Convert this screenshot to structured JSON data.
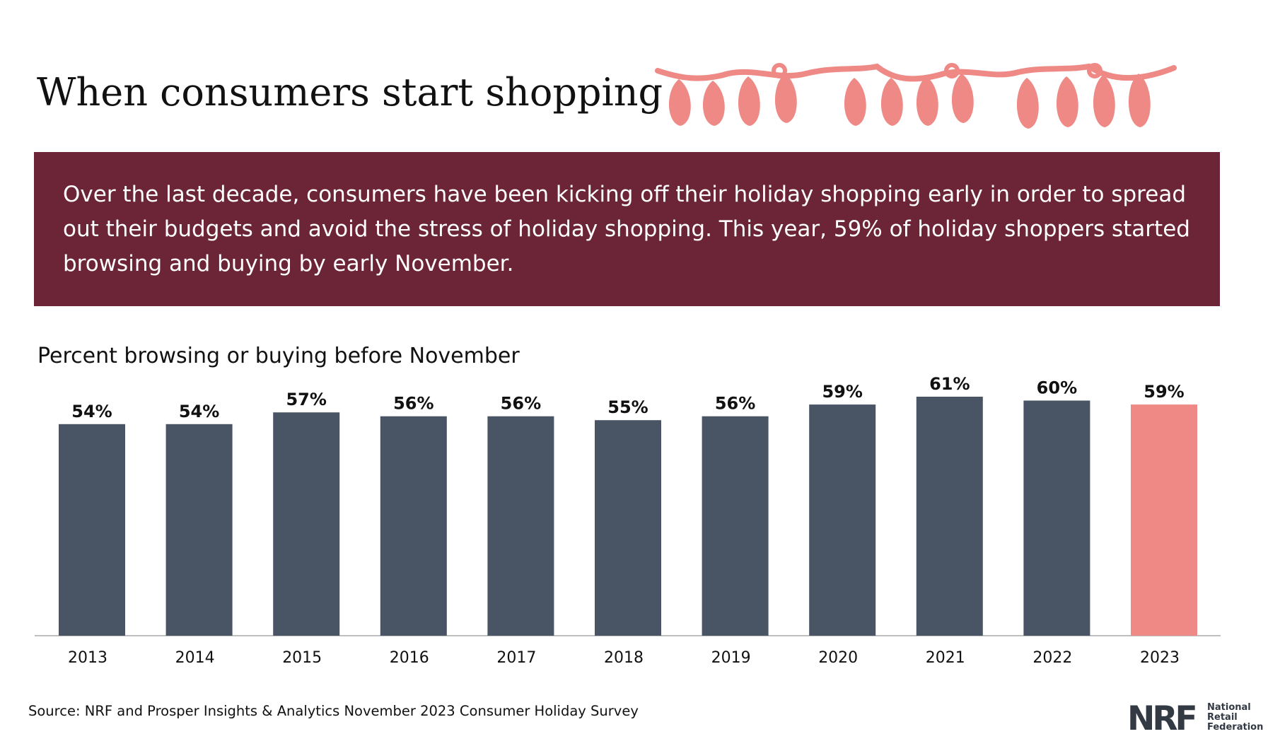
{
  "header": {
    "title": "When consumers start shopping",
    "decoration": "string-lights-illustration"
  },
  "intro": {
    "text": "Over the last decade, consumers have been kicking off their holiday shopping early in order to spread out their budgets and avoid the stress of holiday shopping. This year, 59% of holiday shoppers started browsing and buying by early November."
  },
  "chart_data": {
    "type": "bar",
    "title": "Percent browsing or buying before November",
    "xlabel": "",
    "ylabel": "",
    "categories": [
      "2013",
      "2014",
      "2015",
      "2016",
      "2017",
      "2018",
      "2019",
      "2020",
      "2021",
      "2022",
      "2023"
    ],
    "values": [
      54,
      54,
      57,
      56,
      56,
      55,
      56,
      59,
      61,
      60,
      59
    ],
    "value_labels": [
      "54%",
      "54%",
      "57%",
      "56%",
      "56%",
      "55%",
      "56%",
      "59%",
      "61%",
      "60%",
      "59%"
    ],
    "ylim": [
      0,
      61
    ],
    "grid": false,
    "legend": "none",
    "colors": {
      "default_bar": "#495464",
      "highlight_bar": "#ee8985",
      "baseline": "#bfbfbf",
      "text": "#111111"
    },
    "highlight_index": 10
  },
  "footer": {
    "source": "Source: NRF and Prosper Insights & Analytics November 2023 Consumer Holiday Survey",
    "logo": {
      "mark": "NRF",
      "lines": [
        "National",
        "Retail",
        "Federation"
      ]
    }
  },
  "theme": {
    "intro_background": "#6b2537",
    "lights_color": "#ee8985"
  },
  "icons": {
    "decoration": "string-lights-icon"
  }
}
